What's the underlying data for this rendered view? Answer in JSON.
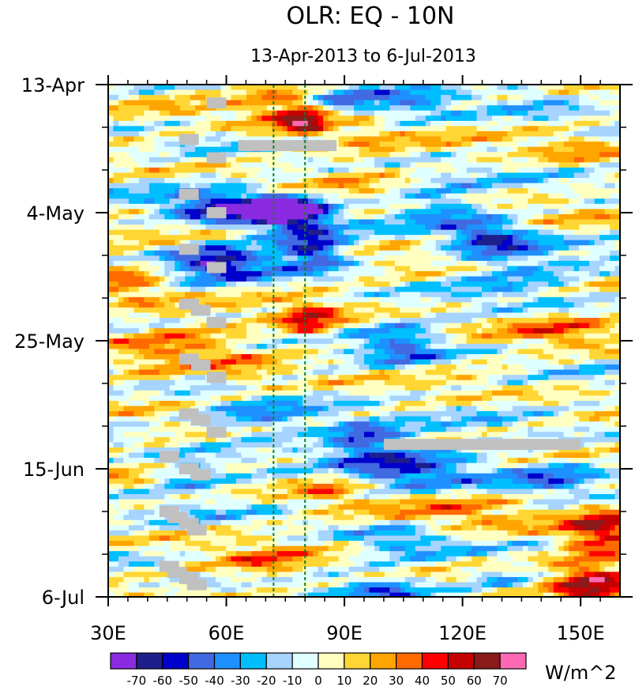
{
  "chart_data": {
    "type": "heatmap",
    "title": "OLR: EQ - 10N",
    "subtitle": "13-Apr-2013 to 6-Jul-2013",
    "unit_label": "W/m^2",
    "x_axis": {
      "range": [
        30,
        160
      ],
      "ticks": [
        {
          "value": 30,
          "label": "30E"
        },
        {
          "value": 60,
          "label": "60E"
        },
        {
          "value": 90,
          "label": "90E"
        },
        {
          "value": 120,
          "label": "120E"
        },
        {
          "value": 150,
          "label": "150E"
        }
      ],
      "minor_ticks": [
        35,
        40,
        45,
        50,
        55,
        65,
        70,
        75,
        80,
        85,
        95,
        100,
        105,
        110,
        115,
        125,
        130,
        135,
        140,
        145,
        155
      ]
    },
    "y_axis": {
      "range_days": [
        0,
        84
      ],
      "ticks": [
        {
          "day": 0,
          "label": "13-Apr"
        },
        {
          "day": 21,
          "label": "4-May"
        },
        {
          "day": 42,
          "label": "25-May"
        },
        {
          "day": 63,
          "label": "15-Jun"
        },
        {
          "day": 84,
          "label": "6-Jul"
        }
      ],
      "minor_tick_days": [
        7,
        14,
        28,
        35,
        49,
        56,
        70,
        77
      ]
    },
    "reference_lines_lon": [
      72,
      80
    ],
    "colorbar": {
      "levels": [
        -70,
        -60,
        -50,
        -40,
        -30,
        -20,
        -10,
        0,
        10,
        20,
        30,
        40,
        50,
        60,
        70
      ],
      "colors": [
        "#8a2be2",
        "#1e1e8c",
        "#0000cd",
        "#4169e1",
        "#1e90ff",
        "#00bfff",
        "#a6d4ff",
        "#e0ffff",
        "#ffffc0",
        "#ffd633",
        "#ffa500",
        "#ff6a00",
        "#ff0000",
        "#c40000",
        "#8b1a1a",
        "#ff69b4"
      ]
    },
    "missing_data_segments": [
      {
        "lon_start": 55,
        "lon_end": 60,
        "day": 3
      },
      {
        "lon_start": 48,
        "lon_end": 53,
        "day": 9
      },
      {
        "lon_start": 63,
        "lon_end": 88,
        "day": 10
      },
      {
        "lon_start": 55,
        "lon_end": 60,
        "day": 12
      },
      {
        "lon_start": 48,
        "lon_end": 53,
        "day": 18
      },
      {
        "lon_start": 55,
        "lon_end": 60,
        "day": 21
      },
      {
        "lon_start": 48,
        "lon_end": 53,
        "day": 27
      },
      {
        "lon_start": 55,
        "lon_end": 60,
        "day": 30
      },
      {
        "lon_start": 48,
        "lon_end": 53,
        "day": 36
      },
      {
        "lon_start": 51,
        "lon_end": 56,
        "day": 37
      },
      {
        "lon_start": 55,
        "lon_end": 60,
        "day": 39
      },
      {
        "lon_start": 48,
        "lon_end": 53,
        "day": 45
      },
      {
        "lon_start": 51,
        "lon_end": 56,
        "day": 46
      },
      {
        "lon_start": 55,
        "lon_end": 60,
        "day": 48
      },
      {
        "lon_start": 48,
        "lon_end": 53,
        "day": 54
      },
      {
        "lon_start": 51,
        "lon_end": 56,
        "day": 55
      },
      {
        "lon_start": 55,
        "lon_end": 60,
        "day": 57
      },
      {
        "lon_start": 100,
        "lon_end": 150,
        "day": 59
      },
      {
        "lon_start": 43,
        "lon_end": 48,
        "day": 61
      },
      {
        "lon_start": 48,
        "lon_end": 53,
        "day": 63
      },
      {
        "lon_start": 51,
        "lon_end": 56,
        "day": 64
      },
      {
        "lon_start": 43,
        "lon_end": 48,
        "day": 70
      },
      {
        "lon_start": 45,
        "lon_end": 50,
        "day": 71
      },
      {
        "lon_start": 48,
        "lon_end": 53,
        "day": 72
      },
      {
        "lon_start": 50,
        "lon_end": 55,
        "day": 73
      },
      {
        "lon_start": 43,
        "lon_end": 48,
        "day": 79
      },
      {
        "lon_start": 45,
        "lon_end": 50,
        "day": 80
      },
      {
        "lon_start": 48,
        "lon_end": 53,
        "day": 81
      },
      {
        "lon_start": 50,
        "lon_end": 55,
        "day": 82
      }
    ],
    "features": [
      {
        "lon": 58,
        "day": 20,
        "dlon": 14,
        "dday": 3,
        "value": -58
      },
      {
        "lon": 72,
        "day": 21,
        "dlon": 9,
        "dday": 3,
        "value": -65
      },
      {
        "lon": 80,
        "day": 21,
        "dlon": 7,
        "dday": 2.5,
        "value": -50
      },
      {
        "lon": 58,
        "day": 29,
        "dlon": 12,
        "dday": 3,
        "value": -60
      },
      {
        "lon": 82,
        "day": 27,
        "dlon": 9,
        "dday": 3,
        "value": -65
      },
      {
        "lon": 75,
        "day": 3,
        "dlon": 11,
        "dday": 5,
        "value": 30
      },
      {
        "lon": 80,
        "day": 6,
        "dlon": 6,
        "dday": 3,
        "value": 45
      },
      {
        "lon": 35,
        "day": 33,
        "dlon": 9,
        "dday": 5,
        "value": 25
      },
      {
        "lon": 81,
        "day": 39,
        "dlon": 7,
        "dday": 3,
        "value": 45
      },
      {
        "lon": 52,
        "day": 42,
        "dlon": 14,
        "dday": 5,
        "value": 20
      },
      {
        "lon": 95,
        "day": 10,
        "dlon": 8,
        "dday": 6,
        "value": 15
      },
      {
        "lon": 150,
        "day": 10,
        "dlon": 12,
        "dday": 3,
        "value": 20
      },
      {
        "lon": 145,
        "day": 40,
        "dlon": 14,
        "dday": 2.5,
        "value": 25
      },
      {
        "lon": 115,
        "day": 20,
        "dlon": 10,
        "dday": 3,
        "value": -35
      },
      {
        "lon": 127,
        "day": 25,
        "dlon": 10,
        "dday": 3,
        "value": -50
      },
      {
        "lon": 133,
        "day": 30,
        "dlon": 16,
        "dday": 4,
        "value": -30
      },
      {
        "lon": 105,
        "day": 43,
        "dlon": 10,
        "dday": 4,
        "value": -35
      },
      {
        "lon": 70,
        "day": 55,
        "dlon": 16,
        "dday": 3,
        "value": -40
      },
      {
        "lon": 95,
        "day": 58,
        "dlon": 10,
        "dday": 3,
        "value": -50
      },
      {
        "lon": 108,
        "day": 63,
        "dlon": 18,
        "dday": 4,
        "value": -45
      },
      {
        "lon": 143,
        "day": 64,
        "dlon": 14,
        "dday": 3,
        "value": -40
      },
      {
        "lon": 50,
        "day": 64,
        "dlon": 10,
        "dday": 3,
        "value": -35
      },
      {
        "lon": 120,
        "day": 71,
        "dlon": 20,
        "dday": 4,
        "value": 25
      },
      {
        "lon": 155,
        "day": 73,
        "dlon": 10,
        "dday": 5,
        "value": 45
      },
      {
        "lon": 153,
        "day": 82,
        "dlon": 10,
        "dday": 4,
        "value": 50
      },
      {
        "lon": 105,
        "day": 75,
        "dlon": 14,
        "dday": 3,
        "value": -30
      },
      {
        "lon": 42,
        "day": 50,
        "dlon": 10,
        "dday": 12,
        "value": 8
      },
      {
        "lon": 90,
        "day": 2,
        "dlon": 12,
        "dday": 3,
        "value": -30
      },
      {
        "lon": 110,
        "day": 3,
        "dlon": 10,
        "dday": 3,
        "value": -20
      },
      {
        "lon": 140,
        "day": 2,
        "dlon": 14,
        "dday": 3,
        "value": -25
      },
      {
        "lon": 66,
        "day": 48,
        "dlon": 10,
        "dday": 3,
        "value": 20
      },
      {
        "lon": 86,
        "day": 66,
        "dlon": 9,
        "dday": 3,
        "value": 28
      },
      {
        "lon": 70,
        "day": 79,
        "dlon": 12,
        "dday": 3,
        "value": 25
      },
      {
        "lon": 100,
        "day": 83,
        "dlon": 10,
        "dday": 2,
        "value": -35
      },
      {
        "lon": 130,
        "day": 81,
        "dlon": 10,
        "dday": 2,
        "value": -30
      }
    ],
    "xlabel": "",
    "ylabel": ""
  }
}
